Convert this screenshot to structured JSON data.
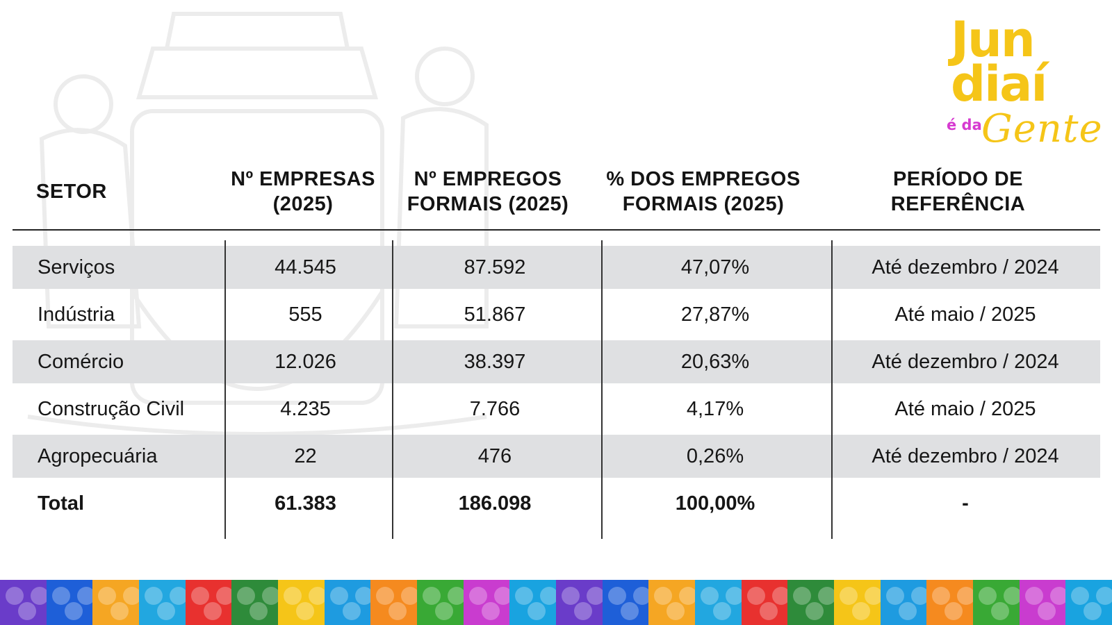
{
  "brand": {
    "logo_line1": "Jun",
    "logo_line2": "diaí",
    "logo_eda": "é da",
    "logo_gente": "Gente",
    "colors": {
      "yellow": "#f5c518",
      "magenta": "#d63ad0"
    }
  },
  "chart_data": {
    "type": "table",
    "columns": [
      "SETOR",
      "Nº EMPRESAS\n(2025)",
      "Nº EMPREGOS\nFORMAIS (2025)",
      "% DOS EMPREGOS\nFORMAIS (2025)",
      "PERÍODO DE\nREFERÊNCIA"
    ],
    "rows": [
      [
        "Serviços",
        "44.545",
        "87.592",
        "47,07%",
        "Até dezembro / 2024"
      ],
      [
        "Indústria",
        "555",
        "51.867",
        "27,87%",
        "Até maio / 2025"
      ],
      [
        "Comércio",
        "12.026",
        "38.397",
        "20,63%",
        "Até dezembro / 2024"
      ],
      [
        "Construção Civil",
        "4.235",
        "7.766",
        "4,17%",
        "Até maio / 2025"
      ],
      [
        "Agropecuária",
        "22",
        "476",
        "0,26%",
        "Até dezembro / 2024"
      ]
    ],
    "total": [
      "Total",
      "61.383",
      "186.098",
      "100,00%",
      "-"
    ],
    "row_shade_color": "#dfe0e2"
  },
  "footer_strip": {
    "icons": [
      "grape-icon",
      "water-waves-icon",
      "sun-icon",
      "fish-icon",
      "music-note-icon",
      "hill-icon",
      "building-icon",
      "runner-icon",
      "train-icon",
      "circuit-icon",
      "flowers-icon",
      "bridge-icon"
    ],
    "colors": [
      "#6a3cc9",
      "#1e5fd8",
      "#f5a623",
      "#22a7e0",
      "#e8312f",
      "#2e8b3a",
      "#f5c518",
      "#1e9be0",
      "#f58a1f",
      "#39a935",
      "#c93ccf",
      "#19a3e0"
    ]
  }
}
